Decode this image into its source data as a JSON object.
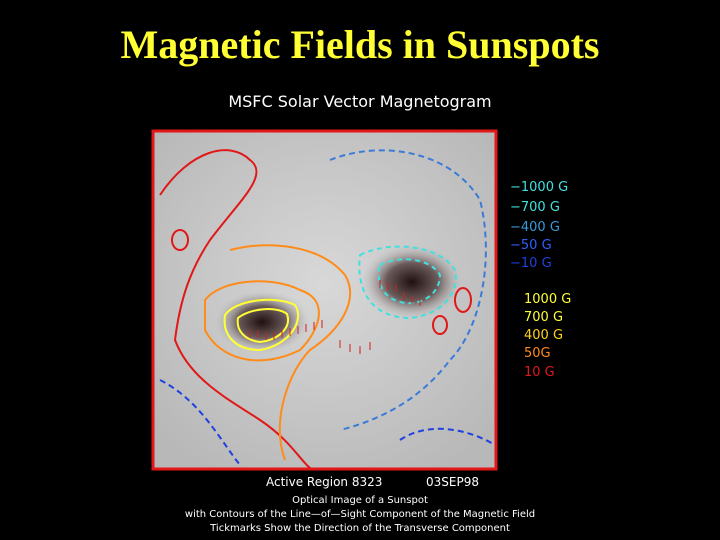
{
  "title": "Magnetic Fields in Sunspots",
  "figure": {
    "heading": "MSFC Solar Vector Magnetogram",
    "legend_negative": [
      "−1000 G",
      "−700 G",
      "−400 G",
      "−50 G",
      "−10 G"
    ],
    "legend_positive": [
      "1000 G",
      "700 G",
      "400 G",
      "50G",
      "10 G"
    ],
    "region": "Active Region 8323",
    "date": "03SEP98",
    "caption": [
      "Optical Image of a Sunspot",
      "with Contours of the Line—of—Sight Component of the Magnetic Field",
      "Tickmarks Show the Direction of the Transverse Component"
    ]
  }
}
